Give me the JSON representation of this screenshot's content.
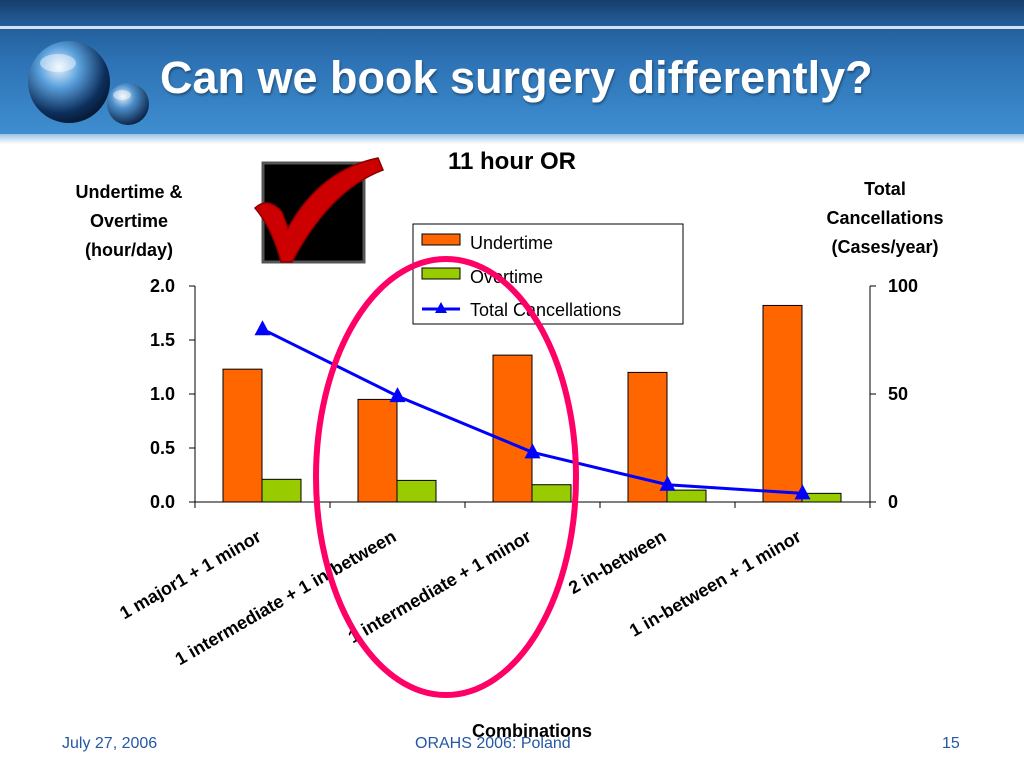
{
  "slide": {
    "title": "Can we book surgery differently?",
    "footer_date": "July 27, 2006",
    "footer_center": "ORAHS 2006: Poland",
    "page_number": "15"
  },
  "colors": {
    "undertime": "#ff6600",
    "overtime": "#99cc00",
    "cancellations": "#0000ff",
    "highlight_ellipse": "#ff0066",
    "checkmark": "#cc0000"
  },
  "chart_data": {
    "type": "bar",
    "title": "11 hour OR",
    "xlabel": "Combinations",
    "ylabel_left": [
      "Undertime &",
      "Overtime",
      "(hour/day)"
    ],
    "ylabel_right": [
      "Total",
      "Cancellations",
      "(Cases/year)"
    ],
    "categories": [
      "1 major1 + 1 minor",
      "1 intermediate + 1 in-between",
      "1 intermediate + 1 minor",
      "2 in-between",
      "1 in-between + 1 minor"
    ],
    "series": [
      {
        "name": "Undertime",
        "type": "bar",
        "axis": "left",
        "values": [
          1.23,
          0.95,
          1.36,
          1.2,
          1.82
        ]
      },
      {
        "name": "Overtime",
        "type": "bar",
        "axis": "left",
        "values": [
          0.21,
          0.2,
          0.16,
          0.11,
          0.08
        ]
      },
      {
        "name": "Total Cancellations",
        "type": "line",
        "marker": "triangle",
        "axis": "right",
        "values": [
          80,
          49,
          23,
          8,
          4
        ]
      }
    ],
    "ylim_left": [
      0,
      2.0
    ],
    "ylim_right": [
      0,
      100
    ],
    "yticks_left": [
      "0.0",
      "0.5",
      "1.0",
      "1.5",
      "2.0"
    ],
    "yticks_right": [
      "0",
      "50",
      "100"
    ],
    "legend_position": "top-center",
    "grid": false,
    "annotations": {
      "checkmark": "top-left, beside the title",
      "highlight_ellipse": "circles the second and third categories"
    }
  }
}
